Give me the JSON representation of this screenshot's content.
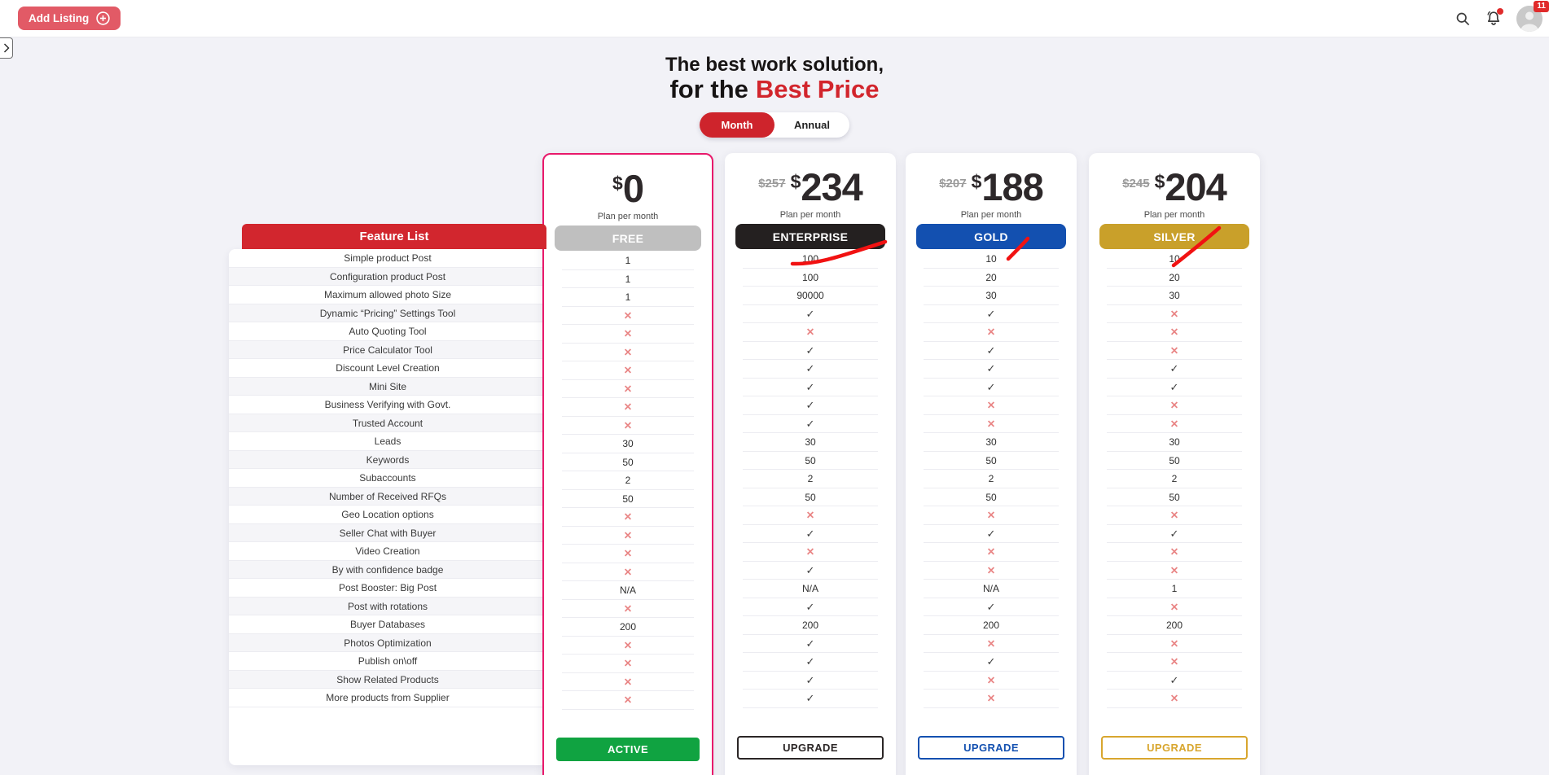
{
  "topbar": {
    "add_listing": "Add Listing",
    "avatar_badge": "11"
  },
  "hero": {
    "title_line1": "The best work solution,",
    "title_line2_prefix": "for the",
    "title_line2_highlight": "Best Price"
  },
  "billing_toggle": {
    "month": "Month",
    "annual": "Annual",
    "active": "month"
  },
  "currency": "$",
  "symbols": {
    "check": "✓",
    "cross": "✕"
  },
  "feature_table": {
    "header": "Feature List",
    "features": [
      "Simple product Post",
      "Configuration product Post",
      "Maximum allowed photo Size",
      "Dynamic “Pricing” Settings Tool",
      "Auto Quoting Tool",
      "Price Calculator Tool",
      "Discount Level Creation",
      "Mini Site",
      "Business Verifying with Govt.",
      "Trusted Account",
      "Leads",
      "Keywords",
      "Subaccounts",
      "Number of Received RFQs",
      "Geo Location options",
      "Seller Chat with Buyer",
      "Video Creation",
      "By with confidence badge",
      "Post Booster: Big Post",
      "Post with rotations",
      "Buyer Databases",
      "Photos Optimization",
      "Publish on\\off",
      "Show Related Products",
      "More products from Supplier"
    ]
  },
  "plans": [
    {
      "name": "FREE",
      "old_price": null,
      "price": "0",
      "period": "Plan per month",
      "badge_color": "#bfbfbf",
      "accent": "#10a341",
      "active": true,
      "button": {
        "label": "ACTIVE",
        "style": "filled"
      },
      "values": [
        "1",
        "1",
        "1",
        "cross",
        "cross",
        "cross",
        "cross",
        "cross",
        "cross",
        "cross",
        "30",
        "50",
        "2",
        "50",
        "cross",
        "cross",
        "cross",
        "cross",
        "N/A",
        "cross",
        "200",
        "cross",
        "cross",
        "cross",
        "cross"
      ]
    },
    {
      "name": "ENTERPRISE",
      "old_price": "257",
      "price": "234",
      "period": "Plan per month",
      "badge_color": "#242020",
      "accent": "#2b2626",
      "active": false,
      "button": {
        "label": "UPGRADE",
        "style": "outline"
      },
      "values": [
        "100",
        "100",
        "90000",
        "check",
        "cross",
        "check",
        "check",
        "check",
        "check",
        "check",
        "30",
        "50",
        "2",
        "50",
        "cross",
        "check",
        "cross",
        "check",
        "N/A",
        "check",
        "200",
        "check",
        "check",
        "check",
        "check"
      ]
    },
    {
      "name": "GOLD",
      "old_price": "207",
      "price": "188",
      "period": "Plan per month",
      "badge_color": "#1350b0",
      "accent": "#1350b0",
      "active": false,
      "button": {
        "label": "UPGRADE",
        "style": "outline"
      },
      "values": [
        "10",
        "20",
        "30",
        "check",
        "cross",
        "check",
        "check",
        "check",
        "cross",
        "cross",
        "30",
        "50",
        "2",
        "50",
        "cross",
        "check",
        "cross",
        "cross",
        "N/A",
        "check",
        "200",
        "cross",
        "check",
        "cross",
        "cross"
      ]
    },
    {
      "name": "SILVER",
      "old_price": "245",
      "price": "204",
      "period": "Plan per month",
      "badge_color": "#c9a02a",
      "accent": "#d8a62e",
      "active": false,
      "button": {
        "label": "UPGRADE",
        "style": "outline"
      },
      "values": [
        "10",
        "20",
        "30",
        "cross",
        "cross",
        "cross",
        "check",
        "check",
        "cross",
        "cross",
        "30",
        "50",
        "2",
        "50",
        "cross",
        "check",
        "cross",
        "cross",
        "1",
        "cross",
        "200",
        "cross",
        "cross",
        "check",
        "cross"
      ]
    }
  ]
}
